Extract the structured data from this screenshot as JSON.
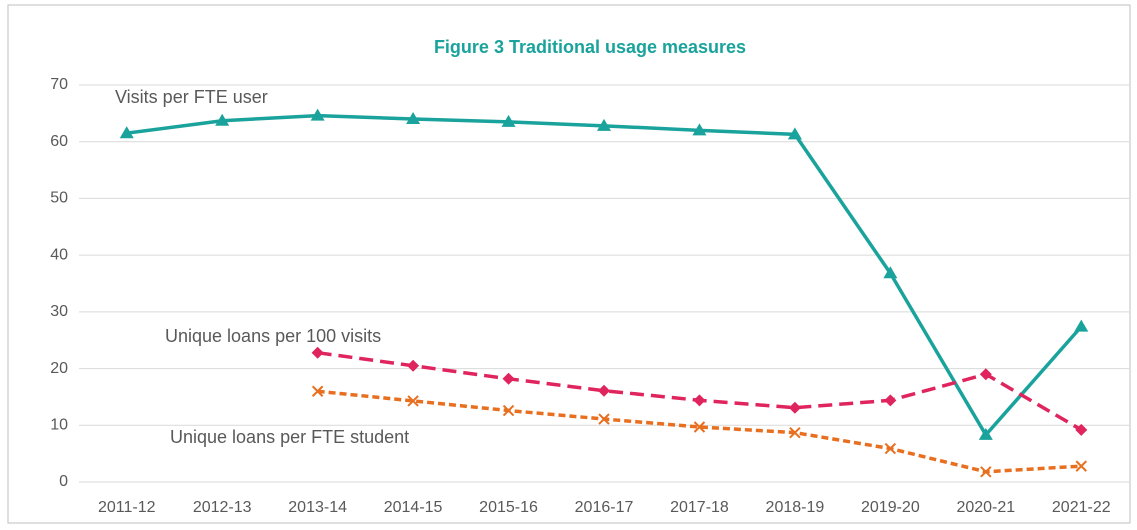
{
  "chart_data": {
    "type": "line",
    "title": "Figure 3 Traditional usage measures",
    "title_color": "#1aa39c",
    "categories": [
      "2011-12",
      "2012-13",
      "2013-14",
      "2014-15",
      "2015-16",
      "2016-17",
      "2017-18",
      "2018-19",
      "2019-20",
      "2020-21",
      "2021-22"
    ],
    "series": [
      {
        "name": "Visits per FTE user",
        "color": "#1aa39c",
        "marker": "triangle",
        "linestyle": "solid",
        "values": [
          61.5,
          63.7,
          64.6,
          64.0,
          63.5,
          62.8,
          62.0,
          61.3,
          36.8,
          8.3,
          27.4
        ]
      },
      {
        "name": "Unique loans per 100 visits",
        "color": "#e0245e",
        "marker": "diamond",
        "linestyle": "dashed",
        "values": [
          null,
          null,
          22.8,
          20.5,
          18.2,
          16.1,
          14.4,
          13.1,
          14.4,
          19.0,
          9.2
        ]
      },
      {
        "name": "Unique loans per FTE student",
        "color": "#e86f1f",
        "marker": "x",
        "linestyle": "dotted",
        "values": [
          null,
          null,
          16.0,
          14.3,
          12.6,
          11.1,
          9.7,
          8.7,
          5.9,
          1.8,
          2.8
        ]
      }
    ],
    "ylim": [
      0,
      70
    ],
    "yticks": [
      0,
      10,
      20,
      30,
      40,
      50,
      60,
      70
    ],
    "grid": true
  }
}
